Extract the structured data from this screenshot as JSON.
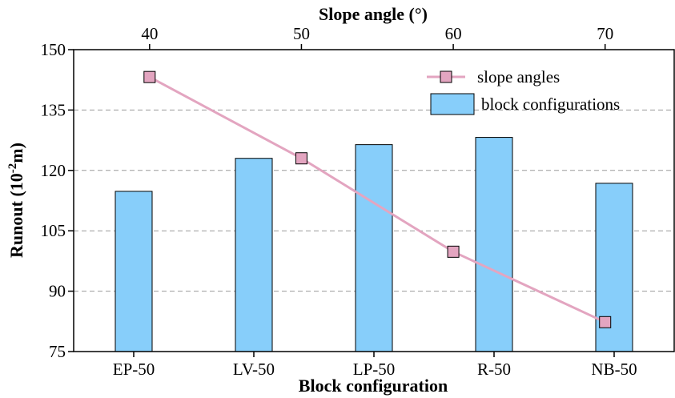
{
  "chart_data": {
    "type": "bar",
    "title": "",
    "xlabel": "Block configuration",
    "ylabel": "Runout (10",
    "ylabel_sup": "-2",
    "ylabel_tail": "m)",
    "ylim": [
      75,
      150
    ],
    "yticks": [
      "75",
      "90",
      "105",
      "120",
      "135",
      "150"
    ],
    "grid": "horizontal dashed",
    "categories": [
      "EP-50",
      "LV-50",
      "LP-50",
      "R-50",
      "NB-50"
    ],
    "series": [
      {
        "name": "block configurations",
        "type": "bar",
        "values": [
          114.8,
          123.0,
          126.4,
          128.2,
          116.8
        ],
        "color": "#87CEFA"
      },
      {
        "name": "slope angles",
        "type": "line",
        "x": [
          40,
          50,
          60,
          70
        ],
        "values": [
          143.2,
          123.0,
          99.8,
          82.3
        ],
        "color": "#E3A5C0",
        "marker": "square"
      }
    ],
    "top_axis": {
      "label": "Slope angle (°)",
      "xlim": [
        35,
        74.55
      ],
      "ticks": [
        "40",
        "50",
        "60",
        "70"
      ]
    },
    "legend": {
      "placement": "top-right",
      "entries": [
        "slope angles",
        "block configurations"
      ]
    }
  }
}
